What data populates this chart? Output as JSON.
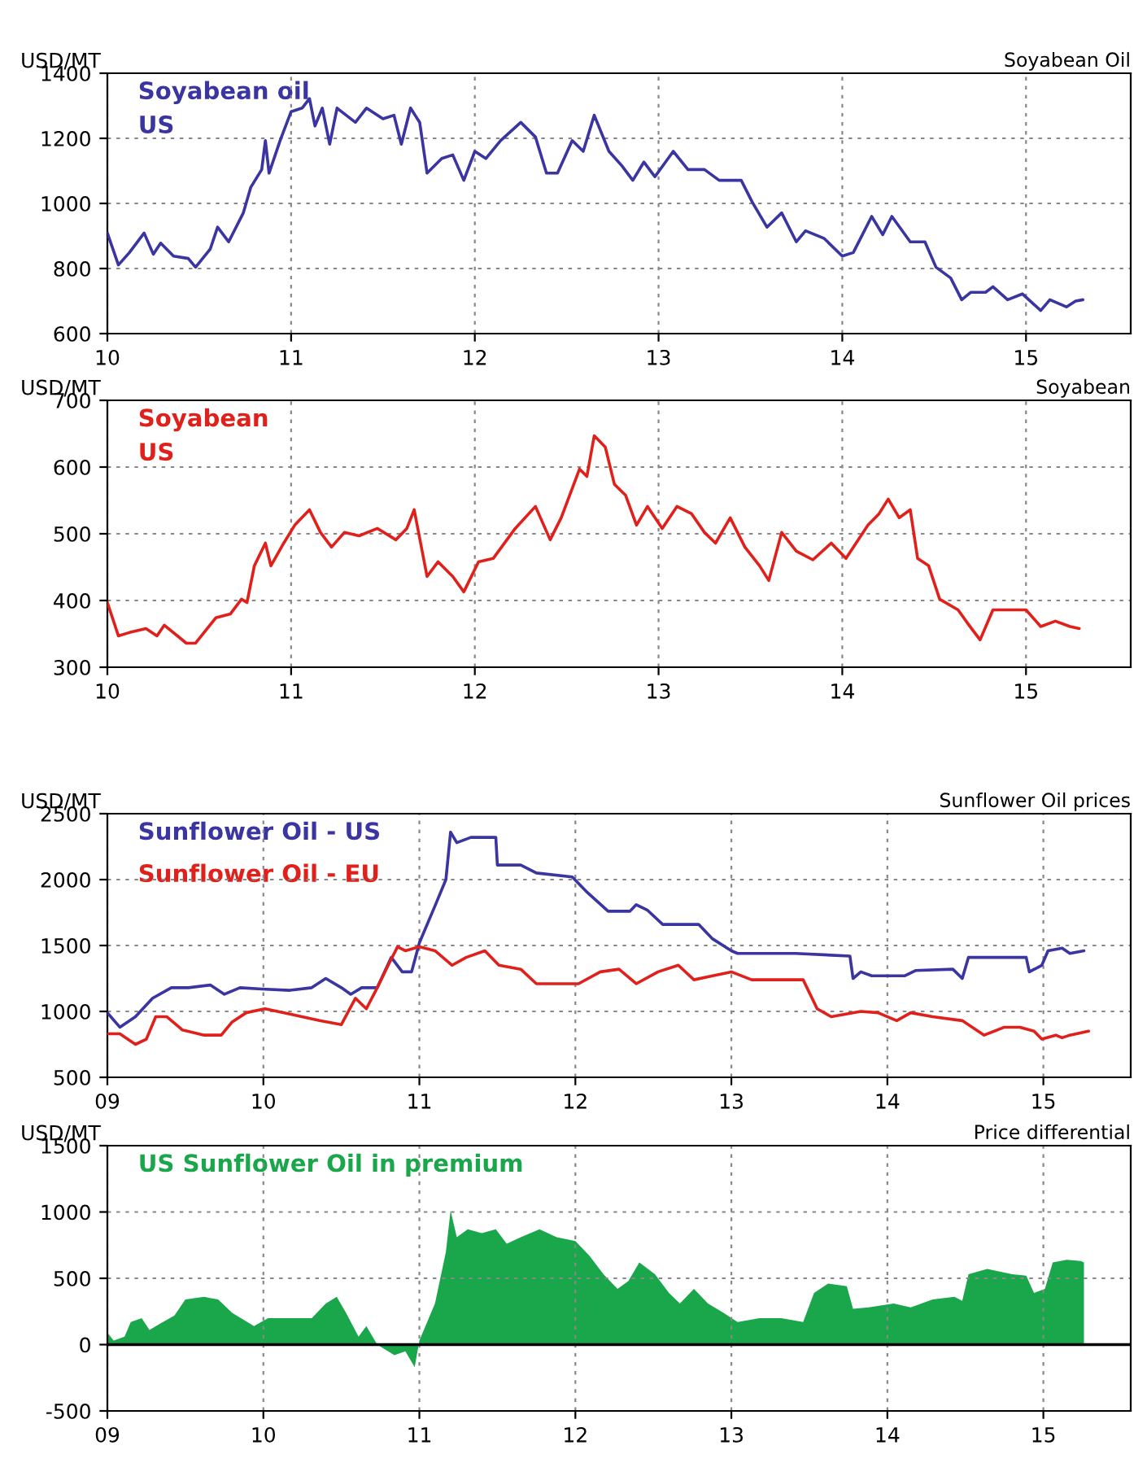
{
  "chart_data": [
    {
      "type": "line",
      "subtitle": "Soyabean Oil",
      "ylabel": "USD/MT",
      "xlim": [
        10,
        15.57
      ],
      "xticks": [
        10,
        11,
        12,
        13,
        14,
        15
      ],
      "ylim": [
        600,
        1400
      ],
      "yticks": [
        600,
        800,
        1000,
        1200,
        1400
      ],
      "grid": true,
      "legend": false,
      "series": [
        {
          "name": "Soyabean oil\nUS",
          "color": "#3a35a0",
          "x": [
            10.0,
            10.06,
            10.12,
            10.2,
            10.25,
            10.29,
            10.36,
            10.44,
            10.48,
            10.56,
            10.6,
            10.66,
            10.74,
            10.78,
            10.84,
            10.86,
            10.88,
            10.94,
            11.0,
            11.06,
            11.1,
            11.13,
            11.17,
            11.21,
            11.25,
            11.35,
            11.41,
            11.5,
            11.56,
            11.6,
            11.65,
            11.7,
            11.74,
            11.82,
            11.88,
            11.94,
            12.0,
            12.06,
            12.14,
            12.25,
            12.33,
            12.39,
            12.45,
            12.53,
            12.59,
            12.65,
            12.73,
            12.8,
            12.86,
            12.92,
            12.98,
            13.08,
            13.16,
            13.25,
            13.33,
            13.45,
            13.51,
            13.59,
            13.67,
            13.75,
            13.8,
            13.9,
            14.0,
            14.06,
            14.16,
            14.22,
            14.27,
            14.37,
            14.45,
            14.51,
            14.59,
            14.65,
            14.7,
            14.78,
            14.82,
            14.9,
            14.98,
            15.08,
            15.13,
            15.22,
            15.27,
            15.31
          ],
          "values": [
            909,
            811,
            849,
            909,
            844,
            878,
            838,
            831,
            804,
            860,
            927,
            882,
            971,
            1049,
            1104,
            1193,
            1093,
            1193,
            1282,
            1293,
            1322,
            1238,
            1293,
            1182,
            1293,
            1249,
            1293,
            1260,
            1271,
            1182,
            1293,
            1249,
            1093,
            1138,
            1149,
            1071,
            1160,
            1138,
            1193,
            1249,
            1204,
            1093,
            1093,
            1193,
            1160,
            1271,
            1160,
            1116,
            1071,
            1127,
            1082,
            1160,
            1104,
            1104,
            1071,
            1071,
            1004,
            927,
            971,
            882,
            916,
            893,
            838,
            849,
            960,
            904,
            960,
            882,
            882,
            804,
            771,
            704,
            727,
            727,
            744,
            704,
            722,
            671,
            704,
            682,
            700,
            704
          ]
        }
      ]
    },
    {
      "type": "line",
      "subtitle": "Soyabean",
      "ylabel": "USD/MT",
      "xlim": [
        10,
        15.57
      ],
      "xticks": [
        10,
        11,
        12,
        13,
        14,
        15
      ],
      "ylim": [
        300,
        700
      ],
      "yticks": [
        300,
        400,
        500,
        600,
        700
      ],
      "grid": true,
      "legend": false,
      "series": [
        {
          "name": "Soyabean\nUS",
          "color": "#e0201b",
          "x": [
            10.0,
            10.06,
            10.12,
            10.21,
            10.27,
            10.31,
            10.43,
            10.48,
            10.59,
            10.67,
            10.73,
            10.76,
            10.8,
            10.86,
            10.89,
            10.96,
            11.02,
            11.1,
            11.16,
            11.22,
            11.29,
            11.37,
            11.47,
            11.57,
            11.63,
            11.67,
            11.74,
            11.8,
            11.88,
            11.94,
            12.02,
            12.1,
            12.22,
            12.33,
            12.41,
            12.47,
            12.57,
            12.61,
            12.65,
            12.71,
            12.76,
            12.82,
            12.88,
            12.94,
            13.02,
            13.1,
            13.18,
            13.25,
            13.31,
            13.39,
            13.47,
            13.55,
            13.6,
            13.67,
            13.75,
            13.84,
            13.94,
            14.02,
            14.14,
            14.2,
            14.25,
            14.31,
            14.37,
            14.41,
            14.47,
            14.53,
            14.63,
            14.69,
            14.75,
            14.82,
            14.9,
            15.0,
            15.08,
            15.16,
            15.24,
            15.29
          ],
          "values": [
            397,
            347,
            352,
            358,
            347,
            363,
            336,
            336,
            374,
            380,
            402,
            397,
            452,
            486,
            452,
            486,
            513,
            536,
            502,
            480,
            502,
            497,
            508,
            491,
            508,
            536,
            436,
            458,
            436,
            413,
            458,
            463,
            508,
            541,
            491,
            524,
            597,
            586,
            647,
            630,
            574,
            558,
            513,
            541,
            508,
            541,
            530,
            502,
            486,
            524,
            480,
            452,
            430,
            502,
            474,
            461,
            486,
            463,
            513,
            530,
            552,
            524,
            536,
            463,
            452,
            402,
            386,
            363,
            341,
            386,
            386,
            386,
            361,
            369,
            361,
            358
          ]
        }
      ]
    },
    {
      "type": "line",
      "subtitle": "Sunflower Oil prices",
      "ylabel": "USD/MT",
      "xlim": [
        9,
        15.56
      ],
      "xticks": [
        {
          "value": 9,
          "label": "09"
        },
        10,
        11,
        12,
        13,
        14,
        15
      ],
      "ylim": [
        500,
        2500
      ],
      "yticks": [
        500,
        1000,
        1500,
        2000,
        2500
      ],
      "grid": true,
      "legend": false,
      "series": [
        {
          "name": "Sunflower Oil - US",
          "color": "#3a35a0",
          "x": [
            9.0,
            9.08,
            9.18,
            9.29,
            9.41,
            9.52,
            9.66,
            9.75,
            9.85,
            9.99,
            10.17,
            10.31,
            10.4,
            10.5,
            10.56,
            10.63,
            10.73,
            10.82,
            10.89,
            10.95,
            11.0,
            11.1,
            11.17,
            11.2,
            11.24,
            11.33,
            11.49,
            11.5,
            11.65,
            11.75,
            11.98,
            12.07,
            12.21,
            12.35,
            12.39,
            12.46,
            12.56,
            12.79,
            12.88,
            13.0,
            13.04,
            13.41,
            13.76,
            13.78,
            13.83,
            13.9,
            14.11,
            14.18,
            14.42,
            14.48,
            14.52,
            14.89,
            14.91,
            14.99,
            15.03,
            15.12,
            15.17,
            15.26
          ],
          "values": [
            990,
            880,
            960,
            1100,
            1180,
            1180,
            1200,
            1130,
            1180,
            1170,
            1160,
            1180,
            1250,
            1180,
            1130,
            1180,
            1180,
            1410,
            1300,
            1300,
            1520,
            1800,
            2000,
            2360,
            2280,
            2320,
            2320,
            2110,
            2110,
            2050,
            2020,
            1910,
            1760,
            1760,
            1810,
            1770,
            1660,
            1660,
            1550,
            1460,
            1440,
            1440,
            1420,
            1250,
            1300,
            1270,
            1270,
            1310,
            1320,
            1250,
            1410,
            1410,
            1300,
            1350,
            1460,
            1480,
            1440,
            1460
          ]
        },
        {
          "name": "Sunflower Oil - EU",
          "color": "#e0201b",
          "x": [
            9.0,
            9.08,
            9.18,
            9.25,
            9.31,
            9.38,
            9.48,
            9.62,
            9.73,
            9.8,
            9.89,
            10.01,
            10.17,
            10.36,
            10.5,
            10.59,
            10.66,
            10.73,
            10.8,
            10.86,
            10.91,
            11.0,
            11.1,
            11.21,
            11.3,
            11.42,
            11.51,
            11.65,
            11.75,
            11.93,
            12.02,
            12.16,
            12.28,
            12.39,
            12.53,
            12.66,
            12.76,
            12.88,
            13.0,
            13.13,
            13.28,
            13.46,
            13.55,
            13.64,
            13.83,
            13.94,
            14.06,
            14.15,
            14.29,
            14.48,
            14.62,
            14.75,
            14.85,
            14.94,
            14.99,
            15.08,
            15.12,
            15.17,
            15.29
          ],
          "values": [
            830,
            830,
            750,
            790,
            960,
            960,
            860,
            820,
            820,
            920,
            990,
            1020,
            980,
            930,
            900,
            1100,
            1020,
            1180,
            1350,
            1490,
            1460,
            1490,
            1460,
            1350,
            1410,
            1460,
            1350,
            1320,
            1210,
            1210,
            1210,
            1300,
            1320,
            1210,
            1300,
            1350,
            1240,
            1270,
            1300,
            1240,
            1240,
            1240,
            1020,
            960,
            1000,
            990,
            930,
            990,
            960,
            930,
            820,
            880,
            880,
            850,
            790,
            820,
            800,
            820,
            850
          ]
        }
      ]
    },
    {
      "type": "area",
      "subtitle": "Price differential",
      "ylabel": "USD/MT",
      "xlim": [
        9,
        15.56
      ],
      "xticks": [
        {
          "value": 9,
          "label": "09"
        },
        10,
        11,
        12,
        13,
        14,
        15
      ],
      "ylim": [
        -500,
        1500
      ],
      "yticks": [
        -500,
        0,
        500,
        1000,
        1500
      ],
      "grid": true,
      "legend": false,
      "ref_lines": [
        {
          "axis": "y",
          "value": 0,
          "color": "#000000"
        }
      ],
      "series": [
        {
          "name": "US Sunflower Oil in premium",
          "color": "#1aa64a",
          "x": [
            9.0,
            9.04,
            9.11,
            9.15,
            9.22,
            9.27,
            9.34,
            9.43,
            9.5,
            9.62,
            9.71,
            9.8,
            9.94,
            10.03,
            10.17,
            10.31,
            10.4,
            10.47,
            10.53,
            10.61,
            10.66,
            10.73,
            10.84,
            10.91,
            10.97,
            11.0,
            11.1,
            11.17,
            11.2,
            11.24,
            11.31,
            11.4,
            11.49,
            11.56,
            11.65,
            11.77,
            11.88,
            12.0,
            12.09,
            12.18,
            12.27,
            12.34,
            12.41,
            12.51,
            12.6,
            12.67,
            12.76,
            12.85,
            12.95,
            13.04,
            13.18,
            13.32,
            13.46,
            13.53,
            13.62,
            13.74,
            13.78,
            13.88,
            14.04,
            14.15,
            14.29,
            14.43,
            14.48,
            14.52,
            14.64,
            14.8,
            14.89,
            14.94,
            15.01,
            15.06,
            15.15,
            15.24,
            15.26
          ],
          "values": [
            90,
            30,
            60,
            170,
            200,
            110,
            160,
            220,
            340,
            360,
            340,
            240,
            140,
            200,
            200,
            200,
            310,
            360,
            240,
            60,
            140,
            0,
            -80,
            -50,
            -170,
            30,
            310,
            700,
            1010,
            810,
            870,
            840,
            870,
            760,
            810,
            870,
            810,
            780,
            670,
            530,
            420,
            480,
            620,
            530,
            390,
            310,
            420,
            310,
            240,
            170,
            200,
            200,
            170,
            390,
            460,
            440,
            270,
            280,
            310,
            280,
            340,
            360,
            330,
            530,
            570,
            530,
            520,
            390,
            420,
            620,
            640,
            630,
            620
          ]
        }
      ]
    }
  ]
}
